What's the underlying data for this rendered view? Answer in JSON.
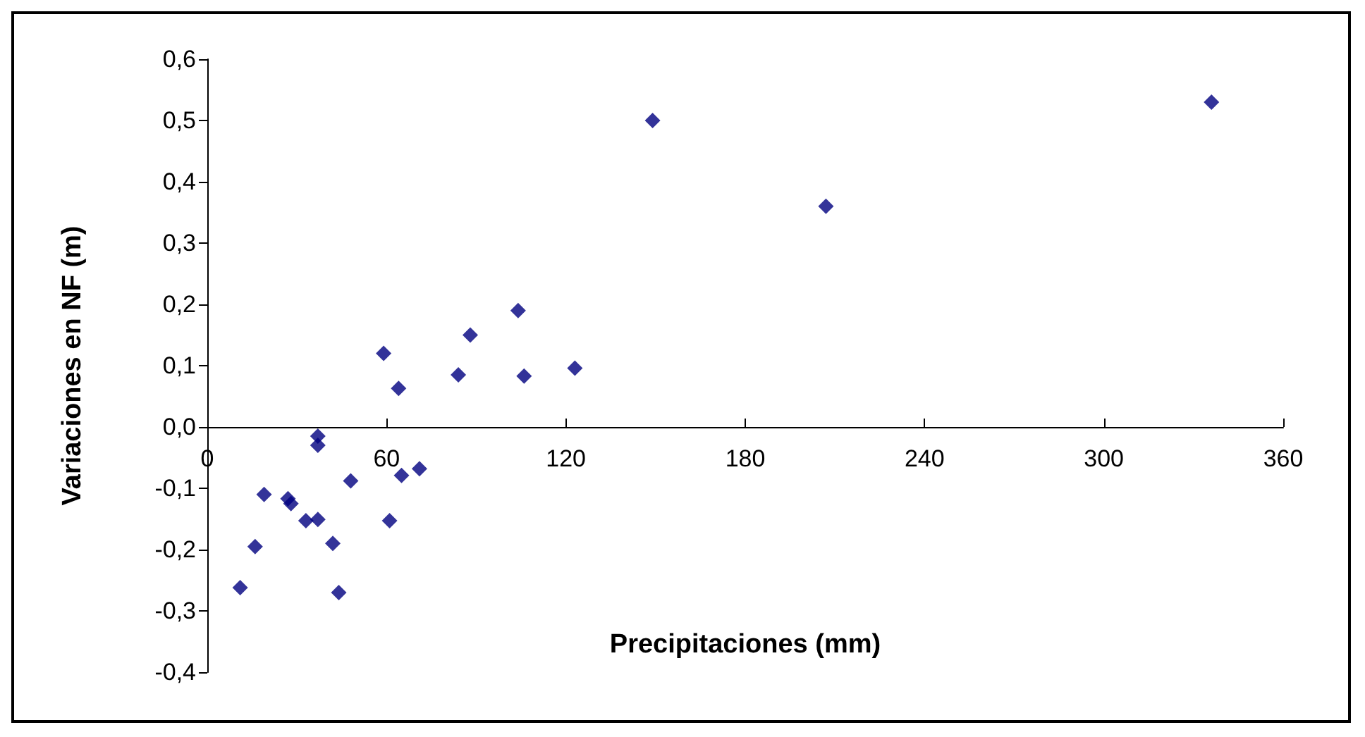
{
  "chart_data": {
    "type": "scatter",
    "xlabel": "Precipitaciones (mm)",
    "ylabel": "Variaciones en NF (m)",
    "x": [
      336,
      207,
      149,
      104,
      88,
      59,
      64,
      84,
      106,
      123,
      37,
      37,
      71,
      65,
      48,
      19,
      27,
      28,
      33,
      37,
      61,
      42,
      16,
      11,
      44
    ],
    "series": [
      {
        "color": "#000080",
        "values": [
          0.53,
          0.36,
          0.5,
          0.19,
          0.15,
          0.12,
          0.063,
          0.085,
          0.083,
          0.096,
          -0.015,
          -0.03,
          -0.068,
          -0.079,
          -0.088,
          -0.11,
          -0.117,
          -0.125,
          -0.153,
          -0.151,
          -0.153,
          -0.19,
          -0.195,
          -0.262,
          -0.27
        ]
      }
    ],
    "xlim": [
      0,
      360
    ],
    "xticks": [
      0,
      60,
      120,
      180,
      240,
      300,
      360
    ],
    "ylim": [
      -0.4,
      0.6
    ],
    "yticks": [
      {
        "value": -0.4,
        "label": "-0,4"
      },
      {
        "value": -0.3,
        "label": "-0,3"
      },
      {
        "value": -0.2,
        "label": "-0,2"
      },
      {
        "value": -0.1,
        "label": "-0,1"
      },
      {
        "value": 0,
        "label": "0,0"
      },
      {
        "value": 0.1,
        "label": "0,1"
      },
      {
        "value": 0.2,
        "label": "0,2"
      },
      {
        "value": 0.3,
        "label": "0,3"
      },
      {
        "value": 0.4,
        "label": "0,4"
      },
      {
        "value": 0.5,
        "label": "0,5"
      },
      {
        "value": 0.6,
        "label": "0,6"
      }
    ],
    "marker": "diamond"
  }
}
